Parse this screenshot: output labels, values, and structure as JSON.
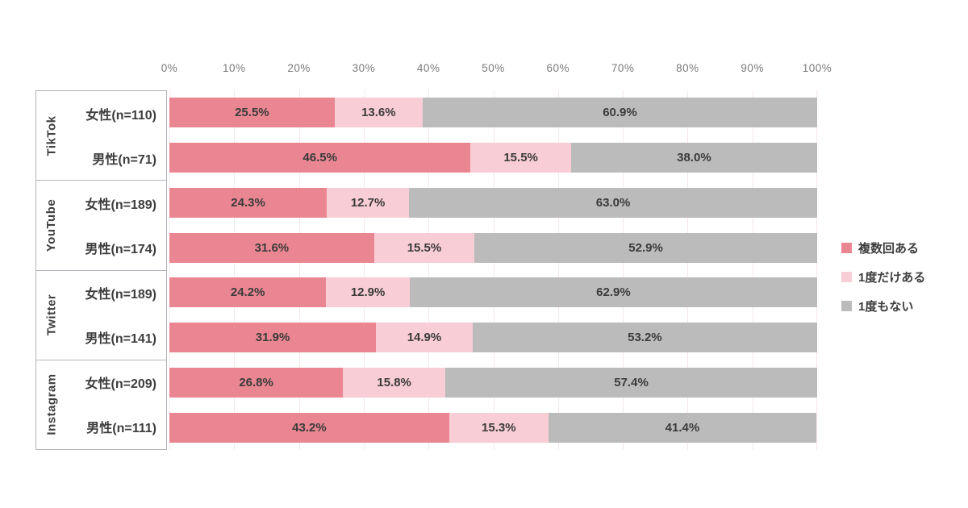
{
  "chart_data": {
    "type": "bar",
    "stacked": true,
    "orientation": "horizontal",
    "title": "",
    "xlabel": "",
    "ylabel": "",
    "xlim": [
      0,
      100
    ],
    "grid": true,
    "legend_position": "right",
    "x_axis_ticks": [
      "0%",
      "10%",
      "20%",
      "30%",
      "40%",
      "50%",
      "60%",
      "70%",
      "80%",
      "90%",
      "100%"
    ],
    "legend": [
      {
        "label": "複数回ある",
        "color": "#e98691"
      },
      {
        "label": "1度だけある",
        "color": "#f8cdd5"
      },
      {
        "label": "1度もない",
        "color": "#bbbbbb"
      }
    ],
    "groups": [
      {
        "platform": "TikTok",
        "rows": [
          {
            "label": "女性(n=110)",
            "values": [
              25.5,
              13.6,
              60.9
            ],
            "value_labels": [
              "25.5%",
              "13.6%",
              "60.9%"
            ]
          },
          {
            "label": "男性(n=71)",
            "values": [
              46.5,
              15.5,
              38.0
            ],
            "value_labels": [
              "46.5%",
              "15.5%",
              "38.0%"
            ]
          }
        ]
      },
      {
        "platform": "YouTube",
        "rows": [
          {
            "label": "女性(n=189)",
            "values": [
              24.3,
              12.7,
              63.0
            ],
            "value_labels": [
              "24.3%",
              "12.7%",
              "63.0%"
            ]
          },
          {
            "label": "男性(n=174)",
            "values": [
              31.6,
              15.5,
              52.9
            ],
            "value_labels": [
              "31.6%",
              "15.5%",
              "52.9%"
            ]
          }
        ]
      },
      {
        "platform": "Twitter",
        "rows": [
          {
            "label": "女性(n=189)",
            "values": [
              24.2,
              12.9,
              62.9
            ],
            "value_labels": [
              "24.2%",
              "12.9%",
              "62.9%"
            ]
          },
          {
            "label": "男性(n=141)",
            "values": [
              31.9,
              14.9,
              53.2
            ],
            "value_labels": [
              "31.9%",
              "14.9%",
              "53.2%"
            ]
          }
        ]
      },
      {
        "platform": "Instagram",
        "rows": [
          {
            "label": "女性(n=209)",
            "values": [
              26.8,
              15.8,
              57.4
            ],
            "value_labels": [
              "26.8%",
              "15.8%",
              "57.4%"
            ]
          },
          {
            "label": "男性(n=111)",
            "values": [
              43.2,
              15.3,
              41.4
            ],
            "value_labels": [
              "43.2%",
              "15.3%",
              "41.4%"
            ]
          }
        ]
      }
    ]
  }
}
